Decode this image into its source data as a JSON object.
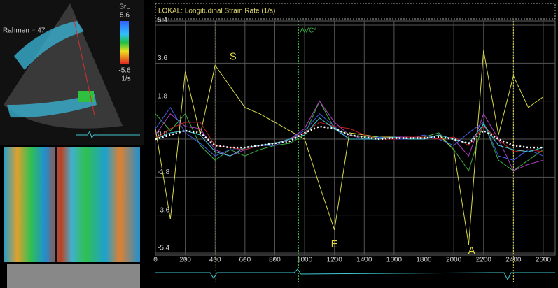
{
  "chart_data": {
    "type": "line",
    "title": "LOKAL: Longitudinal Strain Rate (1/s)",
    "x": [
      0,
      100,
      200,
      300,
      400,
      500,
      600,
      700,
      800,
      900,
      1000,
      1100,
      1200,
      1300,
      1400,
      1500,
      1600,
      1700,
      1800,
      1900,
      2000,
      2100,
      2200,
      2300,
      2400,
      2500,
      2600
    ],
    "series": [
      {
        "color": "#d8d848",
        "values": [
          0.5,
          -3.8,
          3.2,
          0.2,
          3.5,
          2.5,
          1.5,
          1.2,
          0.8,
          0.4,
          0,
          -2.2,
          -4.3,
          0.3,
          0.2,
          0.1,
          0.1,
          0,
          0,
          0.2,
          -0.5,
          -5.0,
          4.2,
          0.2,
          3.0,
          1.5,
          2.0
        ]
      },
      {
        "color": "#3cb043",
        "values": [
          1.2,
          0.4,
          1.2,
          -0.3,
          -1.0,
          -0.5,
          -0.8,
          -0.5,
          -0.3,
          -0.2,
          0.2,
          1.8,
          0.5,
          0.2,
          0.1,
          0.1,
          0,
          0,
          0.1,
          0.3,
          -0.5,
          -1.5,
          0.8,
          -1.0,
          -1.5,
          -1.0,
          -0.5
        ]
      },
      {
        "color": "#b040c0",
        "values": [
          0.2,
          1.2,
          0.6,
          0.5,
          -0.5,
          -0.8,
          -0.5,
          -0.3,
          -0.2,
          0,
          0.5,
          1.8,
          0.8,
          0.2,
          0,
          0,
          0.1,
          0.1,
          0,
          0.2,
          0,
          -0.8,
          1.2,
          0,
          -1.5,
          -1.2,
          -1.0
        ]
      },
      {
        "color": "#4060e0",
        "values": [
          0.5,
          1.5,
          0.3,
          -0.2,
          -0.8,
          -0.5,
          -0.5,
          -0.3,
          -0.3,
          0,
          0.4,
          1.2,
          0.6,
          0,
          0,
          0.1,
          0,
          0,
          0.2,
          0,
          -0.3,
          0.3,
          0.8,
          -0.8,
          -1.0,
          -0.5,
          -0.8
        ]
      },
      {
        "color": "#c02020",
        "values": [
          0,
          0.5,
          0.8,
          0.8,
          -0.3,
          -0.4,
          -0.5,
          -0.3,
          -0.2,
          0,
          0.3,
          0.8,
          0.6,
          0.5,
          0.2,
          0,
          0,
          0.1,
          0.1,
          0,
          0.1,
          -0.3,
          0.6,
          0,
          -0.6,
          -0.5,
          -0.6
        ]
      },
      {
        "color": "#40c8d0",
        "values": [
          0,
          0.3,
          0.4,
          0.2,
          -0.6,
          -0.8,
          -0.4,
          -0.3,
          -0.2,
          0,
          0.2,
          1.0,
          0.5,
          0,
          0,
          0,
          0.1,
          0,
          0,
          0.2,
          0,
          -0.2,
          0.7,
          -0.3,
          -0.5,
          -0.6,
          -0.4
        ]
      },
      {
        "color": "#ffffff",
        "dashed": true,
        "values": [
          0,
          0.2,
          0.4,
          0.3,
          -0.3,
          -0.4,
          -0.4,
          -0.3,
          -0.2,
          -0.1,
          0.3,
          0.6,
          0.5,
          0.2,
          0.1,
          0,
          0.05,
          0.05,
          0.05,
          0.1,
          0,
          -0.2,
          0.4,
          0,
          -0.3,
          -0.4,
          -0.4
        ]
      }
    ],
    "xlim": [
      0,
      2680
    ],
    "ylim": [
      -5.5,
      5.6
    ],
    "xticks": [
      0,
      200,
      400,
      600,
      800,
      1000,
      1200,
      1400,
      1600,
      1800,
      2000,
      2200,
      2400,
      2600
    ],
    "yticks": [
      {
        "value": 5.4,
        "label": "5.4"
      },
      3.6,
      1.8,
      {
        "value": 0,
        "label": "0.0"
      },
      -1.8,
      -3.6,
      -5.4
    ],
    "grid": true,
    "event_lines": [
      {
        "x": 405,
        "color": "#d8d848"
      },
      {
        "x": 2400,
        "color": "#d8d848"
      },
      {
        "x": 960,
        "color": "#3cb043",
        "label": "AVC*"
      }
    ],
    "annotations": [
      {
        "text": "S",
        "x": 520,
        "y": 3.9
      },
      {
        "text": "E",
        "x": 1200,
        "y": -5.0
      },
      {
        "text": "A",
        "x": 2120,
        "y": -5.3
      }
    ]
  },
  "side_panel": {
    "frame_label": "Rahmen = 47",
    "scale_title": "SrL",
    "scale_max": "5.6",
    "scale_min": "-5.6",
    "scale_unit": "1/s"
  }
}
